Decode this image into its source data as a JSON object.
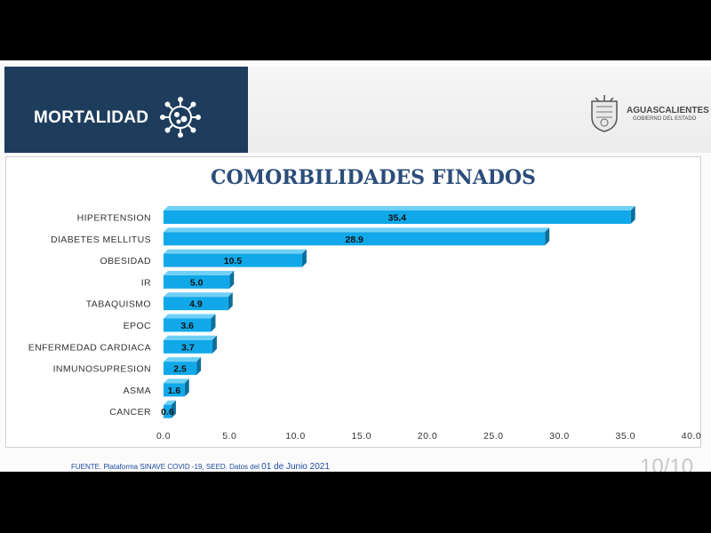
{
  "banner": {
    "title": "MORTALIDAD",
    "icon": "virus-icon"
  },
  "logo": {
    "name": "AGUASCALIENTES",
    "subtitle": "GOBIERNO DEL ESTADO",
    "icon": "state-coat-of-arms-icon"
  },
  "source": {
    "text": "FUENTE. Plataforma SINAVE COVID -19, SEED. Datos del ",
    "date": "01 de Junio 2021"
  },
  "page_number": "10/10",
  "colors": {
    "banner": "#1e3d5c",
    "bar": "#10a8e8",
    "bar_dark": "#0a6f9e",
    "title": "#2b4d7a"
  },
  "chart_data": {
    "type": "bar",
    "orientation": "horizontal",
    "title": "COMORBILIDADES FINADOS",
    "categories": [
      "HIPERTENSION",
      "DIABETES MELLITUS",
      "OBESIDAD",
      "IR",
      "TABAQUISMO",
      "EPOC",
      "ENFERMEDAD CARDIACA",
      "INMUNOSUPRESION",
      "ASMA",
      "CANCER"
    ],
    "values": [
      35.4,
      28.9,
      10.5,
      5.0,
      4.9,
      3.6,
      3.7,
      2.5,
      1.6,
      0.6
    ],
    "value_labels": [
      "35.4",
      "28.9",
      "10.5",
      "5.0",
      "4.9",
      "3.6",
      "3.7",
      "2.5",
      "1.6",
      "0.6"
    ],
    "xlim": [
      0,
      40
    ],
    "xticks": [
      "0.0",
      "5.0",
      "10.0",
      "15.0",
      "20.0",
      "25.0",
      "30.0",
      "35.0",
      "40.0"
    ],
    "grid": false
  }
}
